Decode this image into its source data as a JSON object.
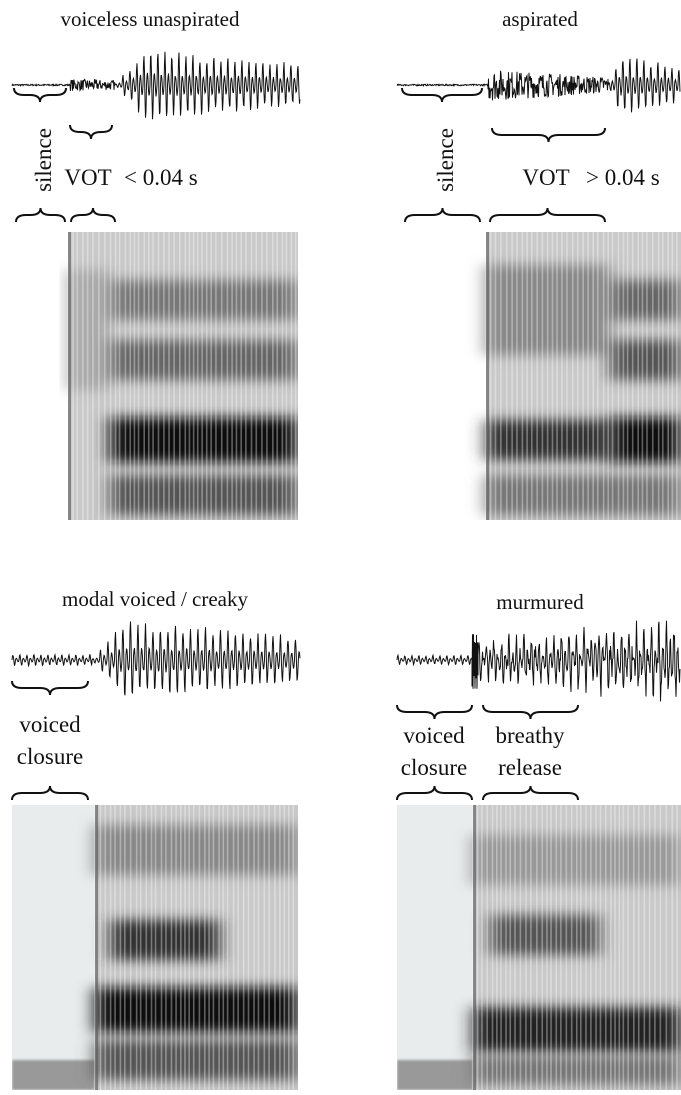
{
  "panels": [
    {
      "title": "voiceless unaspirated",
      "labels": [
        "silence",
        "VOT",
        "< 0.04 s"
      ]
    },
    {
      "title": "aspirated",
      "labels": [
        "silence",
        "VOT",
        "> 0.04 s"
      ]
    },
    {
      "title": "modal voiced / creaky",
      "labels": [
        "voiced",
        "closure"
      ]
    },
    {
      "title": "murmured",
      "labels": [
        "voiced",
        "closure",
        "breathy",
        "release"
      ]
    }
  ]
}
